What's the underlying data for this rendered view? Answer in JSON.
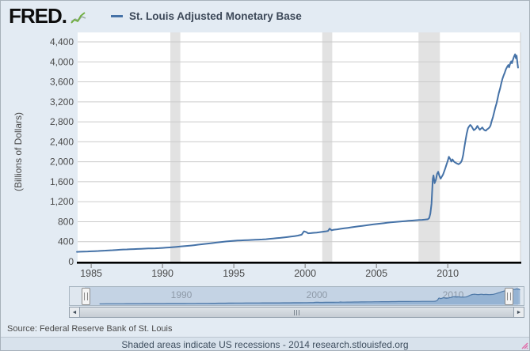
{
  "header": {
    "logo_text": "FRED",
    "logo_dot": ".",
    "series_label": "St. Louis Adjusted Monetary Base"
  },
  "chart_data": {
    "type": "line",
    "title": "St. Louis Adjusted Monetary Base",
    "xlabel": "",
    "ylabel": "(Billions of Dollars)",
    "x_unit": "year",
    "xlim": [
      1984.05,
      2015.1
    ],
    "ylim": [
      0,
      4400
    ],
    "y_ticks": [
      0,
      400,
      800,
      1200,
      1600,
      2000,
      2400,
      2800,
      3200,
      3600,
      4000,
      4400
    ],
    "x_ticks": [
      1985,
      1990,
      1995,
      2000,
      2005,
      2010
    ],
    "grid": "horizontal",
    "legend_position": "top",
    "line_color": "#4572a7",
    "grid_color": "#cbcbcb",
    "recession_band_color": "#e2e2e2",
    "recession_bands": [
      [
        1990.55,
        1991.25
      ],
      [
        2001.2,
        2001.9
      ],
      [
        2007.95,
        2009.45
      ]
    ],
    "series": [
      {
        "name": "St. Louis Adjusted Monetary Base",
        "points": [
          [
            1984.0,
            196
          ],
          [
            1984.25,
            199
          ],
          [
            1984.5,
            202
          ],
          [
            1984.75,
            204
          ],
          [
            1985.0,
            207
          ],
          [
            1985.25,
            210
          ],
          [
            1985.5,
            214
          ],
          [
            1985.75,
            218
          ],
          [
            1986.0,
            222
          ],
          [
            1986.25,
            226
          ],
          [
            1986.5,
            230
          ],
          [
            1986.75,
            235
          ],
          [
            1987.0,
            239
          ],
          [
            1987.25,
            243
          ],
          [
            1987.5,
            246
          ],
          [
            1987.75,
            249
          ],
          [
            1988.0,
            252
          ],
          [
            1988.25,
            255
          ],
          [
            1988.5,
            258
          ],
          [
            1988.75,
            261
          ],
          [
            1989.0,
            264
          ],
          [
            1989.25,
            266
          ],
          [
            1989.5,
            268
          ],
          [
            1989.75,
            271
          ],
          [
            1990.0,
            275
          ],
          [
            1990.25,
            280
          ],
          [
            1990.5,
            285
          ],
          [
            1990.75,
            291
          ],
          [
            1991.0,
            297
          ],
          [
            1991.25,
            304
          ],
          [
            1991.5,
            310
          ],
          [
            1991.75,
            316
          ],
          [
            1992.0,
            323
          ],
          [
            1992.25,
            331
          ],
          [
            1992.5,
            340
          ],
          [
            1992.75,
            348
          ],
          [
            1993.0,
            356
          ],
          [
            1993.25,
            364
          ],
          [
            1993.5,
            372
          ],
          [
            1993.75,
            381
          ],
          [
            1994.0,
            390
          ],
          [
            1994.25,
            398
          ],
          [
            1994.5,
            405
          ],
          [
            1994.75,
            412
          ],
          [
            1995.0,
            418
          ],
          [
            1995.25,
            422
          ],
          [
            1995.5,
            426
          ],
          [
            1995.75,
            429
          ],
          [
            1996.0,
            432
          ],
          [
            1996.25,
            435
          ],
          [
            1996.5,
            438
          ],
          [
            1996.75,
            441
          ],
          [
            1997.0,
            445
          ],
          [
            1997.25,
            450
          ],
          [
            1997.5,
            457
          ],
          [
            1997.75,
            464
          ],
          [
            1998.0,
            471
          ],
          [
            1998.25,
            477
          ],
          [
            1998.5,
            484
          ],
          [
            1998.75,
            492
          ],
          [
            1999.0,
            501
          ],
          [
            1999.25,
            511
          ],
          [
            1999.5,
            522
          ],
          [
            1999.75,
            540
          ],
          [
            1999.92,
            608
          ],
          [
            2000.08,
            592
          ],
          [
            2000.2,
            568
          ],
          [
            2000.4,
            572
          ],
          [
            2000.6,
            577
          ],
          [
            2000.8,
            582
          ],
          [
            2001.0,
            588
          ],
          [
            2001.2,
            596
          ],
          [
            2001.4,
            605
          ],
          [
            2001.6,
            614
          ],
          [
            2001.72,
            661
          ],
          [
            2001.85,
            628
          ],
          [
            2002.0,
            639
          ],
          [
            2002.25,
            648
          ],
          [
            2002.5,
            658
          ],
          [
            2002.75,
            668
          ],
          [
            2003.0,
            678
          ],
          [
            2003.25,
            688
          ],
          [
            2003.5,
            698
          ],
          [
            2003.75,
            708
          ],
          [
            2004.0,
            717
          ],
          [
            2004.25,
            727
          ],
          [
            2004.5,
            736
          ],
          [
            2004.75,
            745
          ],
          [
            2005.0,
            754
          ],
          [
            2005.25,
            762
          ],
          [
            2005.5,
            770
          ],
          [
            2005.75,
            778
          ],
          [
            2006.0,
            786
          ],
          [
            2006.25,
            793
          ],
          [
            2006.5,
            799
          ],
          [
            2006.75,
            806
          ],
          [
            2007.0,
            812
          ],
          [
            2007.25,
            818
          ],
          [
            2007.5,
            823
          ],
          [
            2007.75,
            829
          ],
          [
            2008.0,
            834
          ],
          [
            2008.2,
            838
          ],
          [
            2008.4,
            842
          ],
          [
            2008.6,
            849
          ],
          [
            2008.7,
            874
          ],
          [
            2008.78,
            962
          ],
          [
            2008.86,
            1160
          ],
          [
            2008.95,
            1660
          ],
          [
            2009.0,
            1726
          ],
          [
            2009.08,
            1572
          ],
          [
            2009.17,
            1638
          ],
          [
            2009.25,
            1755
          ],
          [
            2009.33,
            1800
          ],
          [
            2009.42,
            1716
          ],
          [
            2009.5,
            1662
          ],
          [
            2009.58,
            1700
          ],
          [
            2009.67,
            1742
          ],
          [
            2009.75,
            1808
          ],
          [
            2009.83,
            1870
          ],
          [
            2009.92,
            1950
          ],
          [
            2010.0,
            2020
          ],
          [
            2010.08,
            2100
          ],
          [
            2010.17,
            2058
          ],
          [
            2010.25,
            2005
          ],
          [
            2010.33,
            2048
          ],
          [
            2010.42,
            2008
          ],
          [
            2010.5,
            1990
          ],
          [
            2010.58,
            1975
          ],
          [
            2010.67,
            1962
          ],
          [
            2010.75,
            1952
          ],
          [
            2010.83,
            1962
          ],
          [
            2010.92,
            1988
          ],
          [
            2011.0,
            2035
          ],
          [
            2011.08,
            2130
          ],
          [
            2011.17,
            2295
          ],
          [
            2011.25,
            2438
          ],
          [
            2011.33,
            2562
          ],
          [
            2011.42,
            2670
          ],
          [
            2011.5,
            2712
          ],
          [
            2011.58,
            2738
          ],
          [
            2011.67,
            2712
          ],
          [
            2011.75,
            2668
          ],
          [
            2011.83,
            2632
          ],
          [
            2011.92,
            2650
          ],
          [
            2012.0,
            2678
          ],
          [
            2012.08,
            2718
          ],
          [
            2012.17,
            2672
          ],
          [
            2012.25,
            2642
          ],
          [
            2012.33,
            2662
          ],
          [
            2012.42,
            2688
          ],
          [
            2012.5,
            2652
          ],
          [
            2012.58,
            2632
          ],
          [
            2012.67,
            2622
          ],
          [
            2012.75,
            2648
          ],
          [
            2012.83,
            2662
          ],
          [
            2012.92,
            2686
          ],
          [
            2013.0,
            2725
          ],
          [
            2013.08,
            2812
          ],
          [
            2013.17,
            2898
          ],
          [
            2013.25,
            2988
          ],
          [
            2013.33,
            3078
          ],
          [
            2013.42,
            3172
          ],
          [
            2013.5,
            3272
          ],
          [
            2013.58,
            3375
          ],
          [
            2013.67,
            3470
          ],
          [
            2013.75,
            3568
          ],
          [
            2013.83,
            3655
          ],
          [
            2013.92,
            3732
          ],
          [
            2014.0,
            3788
          ],
          [
            2014.08,
            3852
          ],
          [
            2014.17,
            3905
          ],
          [
            2014.25,
            3938
          ],
          [
            2014.3,
            3890
          ],
          [
            2014.38,
            3968
          ],
          [
            2014.45,
            4012
          ],
          [
            2014.5,
            3972
          ],
          [
            2014.58,
            4048
          ],
          [
            2014.65,
            4108
          ],
          [
            2014.72,
            4152
          ],
          [
            2014.78,
            4072
          ],
          [
            2014.83,
            4125
          ],
          [
            2014.88,
            3998
          ],
          [
            2014.93,
            3885
          ]
        ]
      }
    ]
  },
  "minimap": {
    "xlim": [
      1981.8,
      2015.2
    ],
    "fill_color": "#89abce",
    "stroke_color": "#4f79a8",
    "labels": [
      {
        "text": "1990",
        "year": 1990
      },
      {
        "text": "2000",
        "year": 2000
      },
      {
        "text": "2010",
        "year": 2010
      }
    ]
  },
  "scrollbar": {
    "left_arrow": "◄",
    "right_arrow": "►"
  },
  "footer": {
    "source": "Source: Federal Reserve Bank of St. Louis",
    "note": "Shaded areas indicate US recessions - 2014 research.stlouisfed.org"
  }
}
